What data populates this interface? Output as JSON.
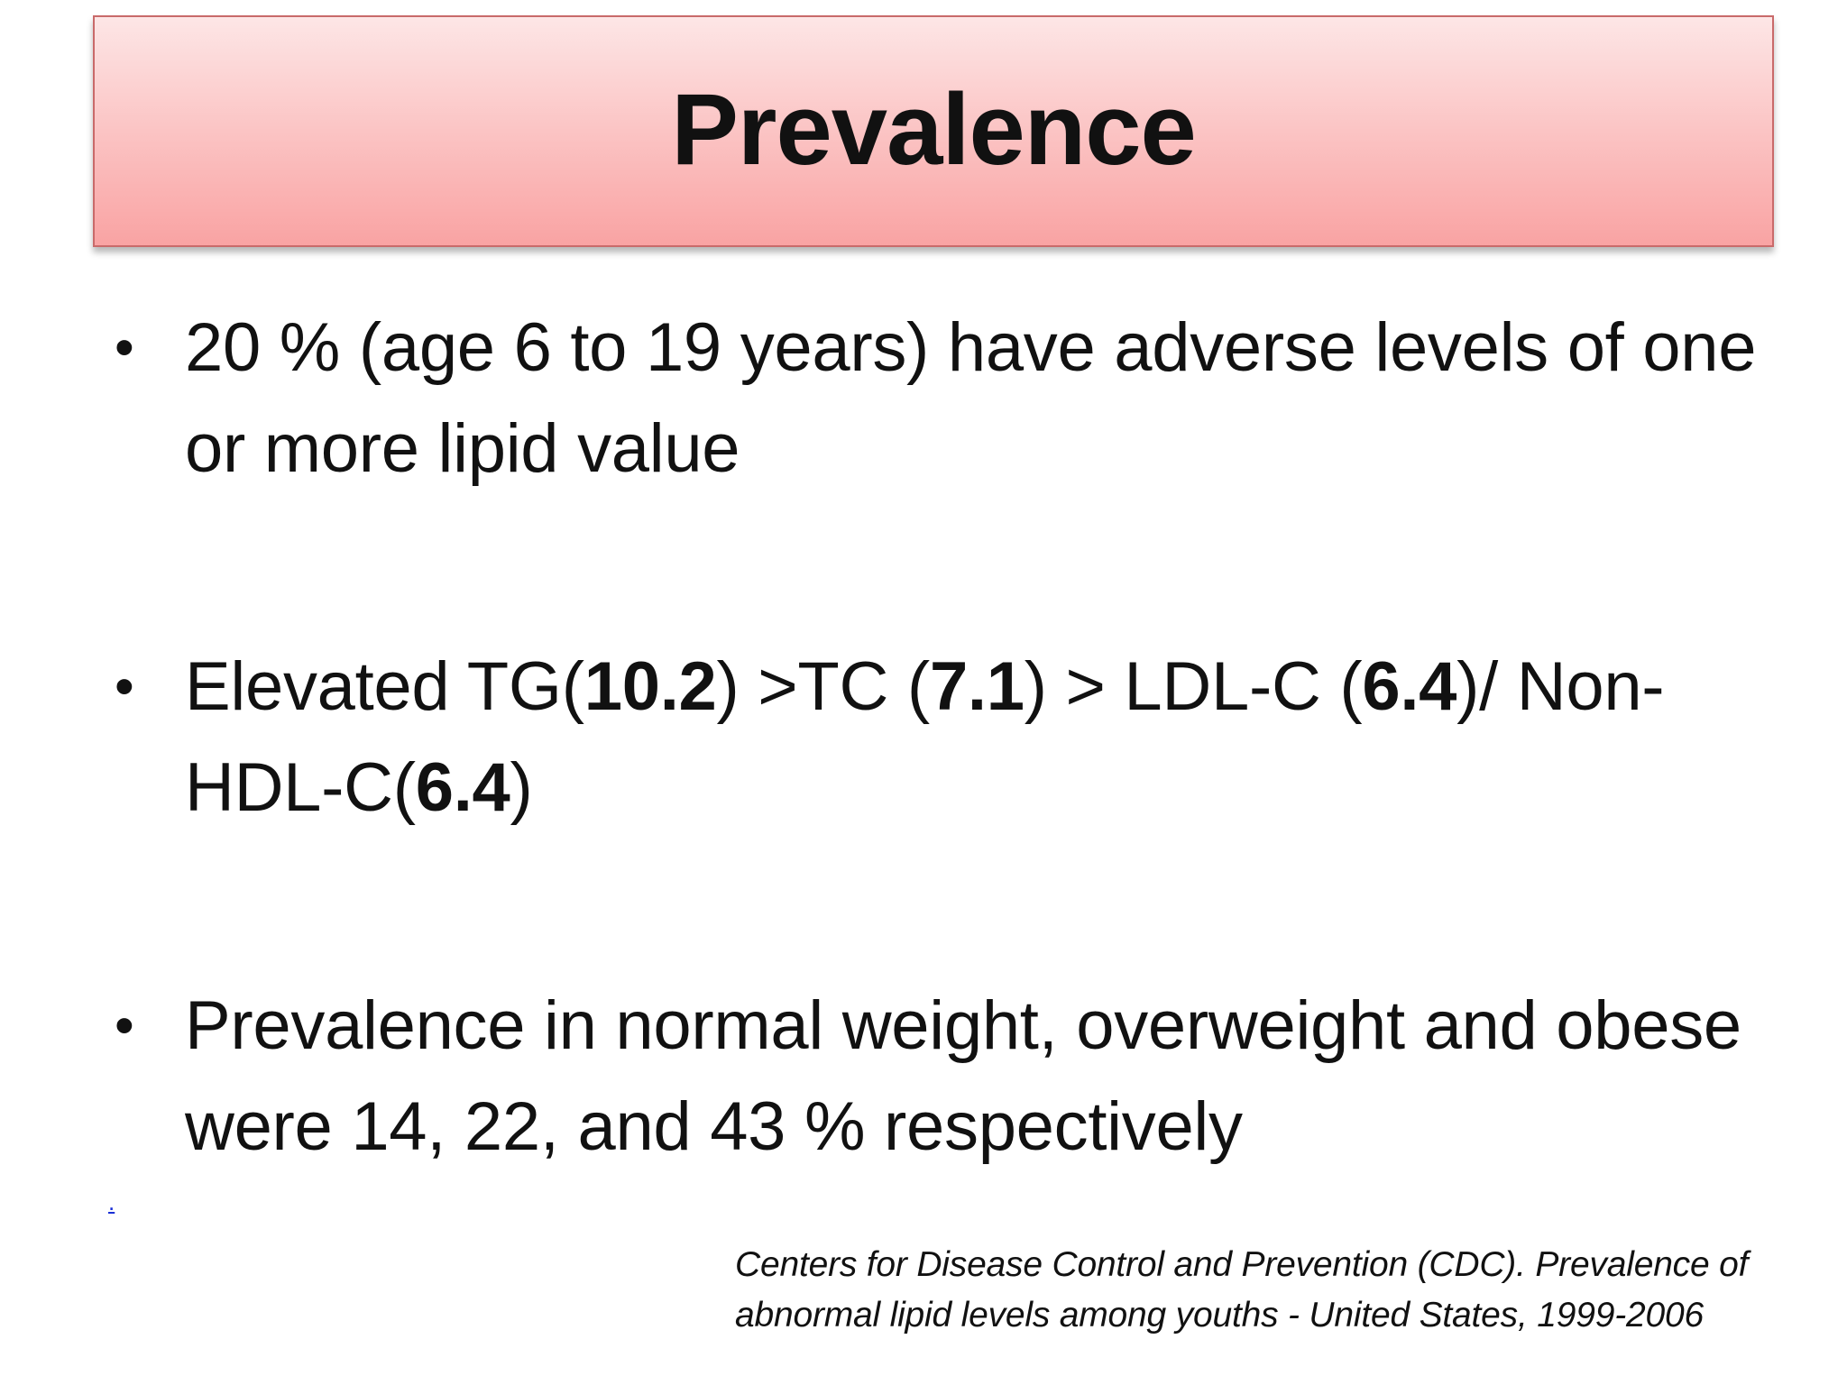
{
  "slide": {
    "title": "Prevalence",
    "bullets": [
      {
        "parts": [
          {
            "text": "20 % (age 6 to 19 years) have adverse levels of one or more lipid value",
            "bold": false
          }
        ]
      },
      {
        "parts": [
          {
            "text": "Elevated TG(",
            "bold": false
          },
          {
            "text": "10.2",
            "bold": true
          },
          {
            "text": ") >TC (",
            "bold": false
          },
          {
            "text": "7.1",
            "bold": true
          },
          {
            "text": ") > LDL-C (",
            "bold": false
          },
          {
            "text": "6.4",
            "bold": true
          },
          {
            "text": ")/ Non-HDL-C(",
            "bold": false
          },
          {
            "text": "6.4",
            "bold": true
          },
          {
            "text": ")",
            "bold": false
          }
        ]
      },
      {
        "parts": [
          {
            "text": "Prevalence in normal weight, overweight and obese were 14, 22, and 43 % respectively",
            "bold": false
          }
        ]
      }
    ],
    "link_text": ".",
    "citation": "Centers for Disease Control and Prevention (CDC). Prevalence of abnormal lipid levels among youths - United States, 1999-2006"
  },
  "colors": {
    "title_gradient_top": "#fde6e6",
    "title_gradient_bottom": "#f9a3a3",
    "title_border": "#c96a6a",
    "link": "#1a2fd6"
  }
}
